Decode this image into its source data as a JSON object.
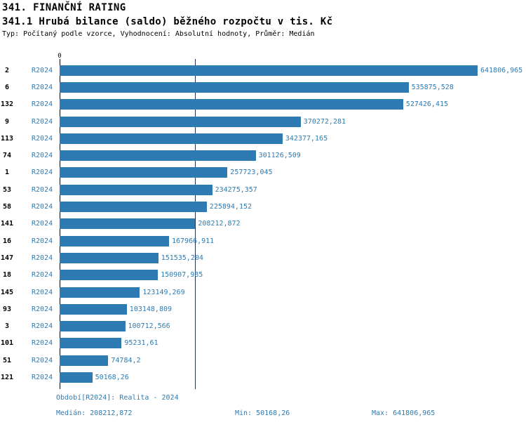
{
  "title": "341. FINANČNÍ RATING",
  "subtitle": "341.1 Hrubá bilance (saldo) běžného rozpočtu v tis. Kč",
  "meta": "Typ: Počítaný podle vzorce, Vyhodnocení: Absolutní hodnoty, Průměr: Medián",
  "colors": {
    "bar": "#2d7bb2",
    "accent_text": "#2d7bb2",
    "median_line": "#223355"
  },
  "footer": {
    "period": "Období[R2024]: Realita - 2024",
    "median": "Medián: 208212,872",
    "min": "Min: 50168,26",
    "max": "Max: 641806,965"
  },
  "chart_data": {
    "type": "bar",
    "orientation": "horizontal",
    "title": "341.1 Hrubá bilance (saldo) běžného rozpočtu v tis. Kč",
    "x_zero_label": "0",
    "xlim": [
      0,
      641806.965
    ],
    "grid": false,
    "legend": false,
    "period_label": "R2024",
    "categories": [
      "2",
      "6",
      "132",
      "9",
      "113",
      "74",
      "1",
      "53",
      "58",
      "141",
      "16",
      "147",
      "18",
      "145",
      "93",
      "3",
      "101",
      "51",
      "121"
    ],
    "values": [
      641806.965,
      535875.528,
      527426.415,
      370272.281,
      342377.165,
      301126.509,
      257723.045,
      234275.357,
      225894.152,
      208212.872,
      167966.911,
      151535.204,
      150907.985,
      123149.269,
      103148.809,
      100712.566,
      95231.61,
      74784.2,
      50168.26
    ],
    "value_labels": [
      "641806,965",
      "535875,528",
      "527426,415",
      "370272,281",
      "342377,165",
      "301126,509",
      "257723,045",
      "234275,357",
      "225894,152",
      "208212,872",
      "167966,911",
      "151535,204",
      "150907,985",
      "123149,269",
      "103148,809",
      "100712,566",
      "95231,61",
      "74784,2",
      "50168,26"
    ],
    "median_value": 208212.872,
    "min_value": 50168.26,
    "max_value": 641806.965
  }
}
